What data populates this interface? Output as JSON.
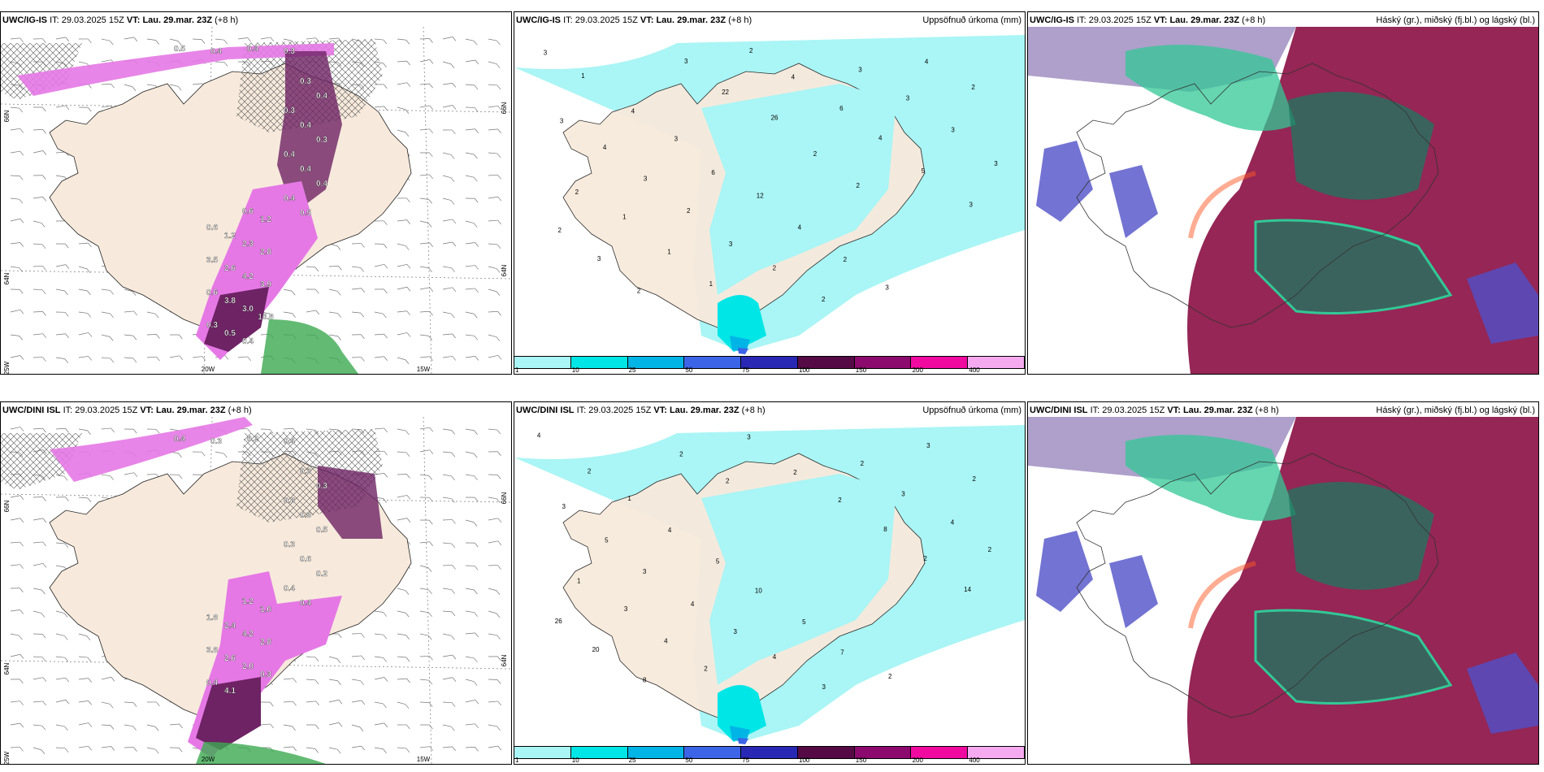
{
  "panels": [
    {
      "model": "UWC/IG-IS",
      "it_label": "IT:",
      "it": "29.03.2025 15Z",
      "vt_label": "VT:",
      "vt": "Lau. 29.mar. 23Z",
      "lead": "(+8 h)",
      "right_title": "",
      "type": "wind-precip",
      "axis_labels": {
        "lon_a": "20W",
        "lon_b": "15W",
        "lat_a": "66N",
        "lat_b": "64N",
        "lat_c": "25W",
        "lat_r1": "66N",
        "lat_r2": "64N"
      },
      "values": [
        "0.5",
        "0.4",
        "0.4",
        "0.3",
        "0.3",
        "0.4",
        "0.3",
        "0.4",
        "0.3",
        "0.4",
        "0.4",
        "0.4",
        "0.4",
        "0.5",
        "0.6",
        "1.2",
        "0.6",
        "1.2",
        "2.3",
        "2.8",
        "3.5",
        "2.6",
        "4.2",
        "3.9",
        "0.6",
        "3.8",
        "3.0",
        "13.8",
        "0.3",
        "0.5",
        "0.4"
      ]
    },
    {
      "model": "UWC/IG-IS",
      "it_label": "IT:",
      "it": "29.03.2025 15Z",
      "vt_label": "VT:",
      "vt": "Lau. 29.mar. 23Z",
      "lead": "(+8 h)",
      "right_title": "Uppsöfnuð úrkoma (mm)",
      "type": "accum",
      "values": [
        "3",
        "1",
        "4",
        "3",
        "6",
        "12",
        "4",
        "2",
        "3",
        "4",
        "2",
        "3",
        "4",
        "3",
        "2",
        "3",
        "2",
        "2",
        "3",
        "3",
        "3",
        "3",
        "2",
        "1",
        "1",
        "1",
        "2",
        "4",
        "6",
        "4",
        "5",
        "3",
        "2",
        "3",
        "2",
        "3",
        "22",
        "26",
        "2",
        "2"
      ]
    },
    {
      "model": "UWC/IG-IS",
      "it_label": "IT:",
      "it": "29.03.2025 15Z",
      "vt_label": "VT:",
      "vt": "Lau. 29.mar. 23Z",
      "lead": "(+8 h)",
      "right_title": "Háský (gr.), miðský (fj.bl.) og lágský (bl.)",
      "type": "cloud"
    },
    {
      "model": "UWC/DINI ISL",
      "it_label": "IT:",
      "it": "29.03.2025 15Z",
      "vt_label": "VT:",
      "vt": "Lau. 29.mar. 23Z",
      "lead": "(+8 h)",
      "right_title": "",
      "type": "wind-precip",
      "axis_labels": {
        "lon_a": "20W",
        "lon_b": "15W",
        "lat_a": "66N",
        "lat_b": "64N",
        "lat_c": "25W",
        "lat_r1": "66N",
        "lat_r2": "64N"
      },
      "values": [
        "0.4",
        "0.3",
        "0.2",
        "0.4",
        "0.3",
        "0.3",
        "0.8",
        "0.3",
        "0.5",
        "0.3",
        "0.6",
        "0.2",
        "0.4",
        "0.4",
        "1.2",
        "1.0",
        "1.8",
        "2.4",
        "4.2",
        "2.8",
        "3.8",
        "2.6",
        "2.0",
        "0.3",
        "0.4",
        "4.1"
      ]
    },
    {
      "model": "UWC/DINI ISL",
      "it_label": "IT:",
      "it": "29.03.2025 15Z",
      "vt_label": "VT:",
      "vt": "Lau. 29.mar. 23Z",
      "lead": "(+8 h)",
      "right_title": "Uppsöfnuð úrkoma (mm)",
      "type": "accum",
      "values": [
        "4",
        "2",
        "1",
        "4",
        "5",
        "10",
        "5",
        "7",
        "2",
        "3",
        "2",
        "3",
        "5",
        "3",
        "4",
        "3",
        "4",
        "3",
        "2",
        "3",
        "4",
        "2",
        "1",
        "3",
        "4",
        "2",
        "3",
        "2",
        "2",
        "8",
        "2",
        "14",
        "26",
        "20",
        "8",
        "2",
        "2"
      ]
    },
    {
      "model": "UWC/DINI ISL",
      "it_label": "IT:",
      "it": "29.03.2025 15Z",
      "vt_label": "VT:",
      "vt": "Lau. 29.mar. 23Z",
      "lead": "(+8 h)",
      "right_title": "Háský (gr.), miðský (fj.bl.) og lágský (bl.)",
      "type": "cloud"
    }
  ],
  "legend": {
    "ticks": [
      "1",
      "10",
      "25",
      "50",
      "75",
      "100",
      "150",
      "200",
      "400"
    ],
    "colors": [
      "#aaf5f5",
      "#00e6e6",
      "#00b4e6",
      "#3c64e6",
      "#2828b4",
      "#550a46",
      "#8c0a6e",
      "#f00aa0",
      "#f5aaf0"
    ]
  },
  "colors": {
    "land": "#f7eadc",
    "precip_light": "#e678e6",
    "precip_dark": "#6e2364",
    "accum_cyan": "#aaf5f5",
    "cloud_high": "#32c896",
    "cloud_mid": "#8c1446",
    "cloud_low": "#5050c8"
  }
}
